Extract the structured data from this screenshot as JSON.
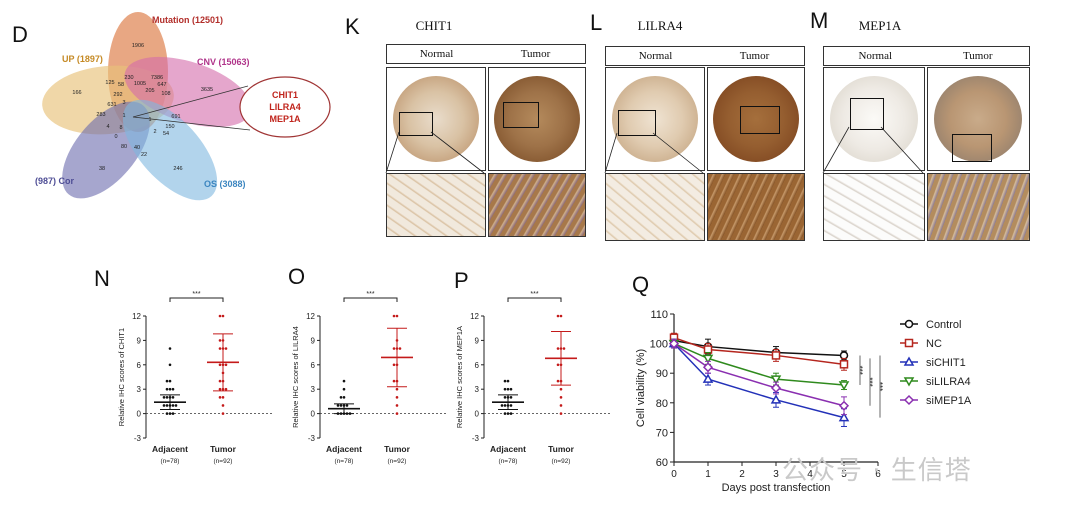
{
  "panels": {
    "D": "D",
    "K": "K",
    "L": "L",
    "M": "M",
    "N": "N",
    "O": "O",
    "P": "P",
    "Q": "Q"
  },
  "venn": {
    "sets": [
      {
        "label": "Mutation (12501)",
        "color": "#e0895a"
      },
      {
        "label": "UP (1897)",
        "color": "#e2b04f"
      },
      {
        "label": "CNV (15063)",
        "color": "#c8509a"
      },
      {
        "label": "(987) Cor",
        "color": "#6b6aad"
      },
      {
        "label": "OS (3088)",
        "color": "#4d9ad1"
      }
    ],
    "numbers": [
      {
        "v": "1906",
        "x": 138,
        "y": 47
      },
      {
        "v": "166",
        "x": 77,
        "y": 94
      },
      {
        "v": "3635",
        "x": 207,
        "y": 91
      },
      {
        "v": "38",
        "x": 102,
        "y": 170
      },
      {
        "v": "246",
        "x": 178,
        "y": 170
      },
      {
        "v": "125",
        "x": 110,
        "y": 84
      },
      {
        "v": "58",
        "x": 121,
        "y": 86
      },
      {
        "v": "230",
        "x": 129,
        "y": 79
      },
      {
        "v": "1005",
        "x": 140,
        "y": 85
      },
      {
        "v": "7386",
        "x": 157,
        "y": 79
      },
      {
        "v": "647",
        "x": 162,
        "y": 86
      },
      {
        "v": "205",
        "x": 150,
        "y": 92
      },
      {
        "v": "108",
        "x": 166,
        "y": 95
      },
      {
        "v": "292",
        "x": 118,
        "y": 96
      },
      {
        "v": "631",
        "x": 112,
        "y": 106
      },
      {
        "v": "3",
        "x": 124,
        "y": 104
      },
      {
        "v": "283",
        "x": 101,
        "y": 116
      },
      {
        "v": "1",
        "x": 124,
        "y": 117
      },
      {
        "v": "691",
        "x": 176,
        "y": 118
      },
      {
        "v": "4",
        "x": 108,
        "y": 128
      },
      {
        "v": "8",
        "x": 121,
        "y": 129
      },
      {
        "v": "150",
        "x": 170,
        "y": 128
      },
      {
        "v": "0",
        "x": 116,
        "y": 138
      },
      {
        "v": "2",
        "x": 155,
        "y": 133
      },
      {
        "v": "54",
        "x": 166,
        "y": 135
      },
      {
        "v": "80",
        "x": 124,
        "y": 148
      },
      {
        "v": "40",
        "x": 137,
        "y": 149
      },
      {
        "v": "22",
        "x": 144,
        "y": 156
      },
      {
        "v": "1",
        "x": 150,
        "y": 121
      }
    ],
    "callout": [
      "CHIT1",
      "LILRA4",
      "MEP1A"
    ]
  },
  "ihc": [
    {
      "panel": "K",
      "gene": "CHIT1",
      "normal": "Normal",
      "tumor": "Tumor"
    },
    {
      "panel": "L",
      "gene": "LILRA4",
      "normal": "Normal",
      "tumor": "Tumor"
    },
    {
      "panel": "M",
      "gene": "MEP1A",
      "normal": "Normal",
      "tumor": "Tumor"
    }
  ],
  "scatter": [
    {
      "panel": "N",
      "ylabel": "Relative IHC scores of CHIT1",
      "groups": [
        "Adjacent",
        "Tumor"
      ],
      "n": [
        "(n=78)",
        "(n=92)"
      ],
      "mean": [
        1.4,
        6.3
      ],
      "sd": [
        0.9,
        3.5
      ],
      "sig": "***"
    },
    {
      "panel": "O",
      "ylabel": "Relative IHC scores of LILRA4",
      "groups": [
        "Adjacent",
        "Tumor"
      ],
      "n": [
        "(n=78)",
        "(n=92)"
      ],
      "mean": [
        0.6,
        6.9
      ],
      "sd": [
        0.6,
        3.6
      ],
      "sig": "***"
    },
    {
      "panel": "P",
      "ylabel": "Relative IHC scores of MEP1A",
      "groups": [
        "Adjacent",
        "Tumor"
      ],
      "n": [
        "(n=78)",
        "(n=92)"
      ],
      "mean": [
        1.4,
        6.8
      ],
      "sd": [
        0.9,
        3.3
      ],
      "sig": "***"
    }
  ],
  "chart_data": [
    {
      "type": "scatter",
      "panel": "N",
      "ylabel": "Relative IHC scores of CHIT1",
      "categories": [
        "Adjacent",
        "Tumor"
      ],
      "ylim": [
        -3,
        12
      ],
      "yticks": [
        -3,
        0,
        3,
        6,
        9,
        12
      ],
      "series": [
        {
          "name": "Adjacent",
          "values": [
            0,
            0,
            0,
            1,
            1,
            1,
            1,
            1,
            2,
            2,
            2,
            2,
            3,
            3,
            3,
            4,
            4,
            6,
            8
          ]
        },
        {
          "name": "Tumor",
          "values": [
            0,
            1,
            2,
            2,
            3,
            3,
            3,
            4,
            4,
            5,
            6,
            6,
            6,
            8,
            8,
            8,
            9,
            9,
            12,
            12
          ]
        }
      ]
    },
    {
      "type": "scatter",
      "panel": "O",
      "ylabel": "Relative IHC scores of LILRA4",
      "categories": [
        "Adjacent",
        "Tumor"
      ],
      "ylim": [
        -3,
        12
      ],
      "yticks": [
        -3,
        0,
        3,
        6,
        9,
        12
      ],
      "series": [
        {
          "name": "Adjacent",
          "values": [
            0,
            0,
            0,
            0,
            0,
            1,
            1,
            1,
            1,
            2,
            2,
            3,
            4
          ]
        },
        {
          "name": "Tumor",
          "values": [
            0,
            1,
            2,
            3,
            4,
            4,
            6,
            6,
            8,
            8,
            8,
            9,
            12,
            12
          ]
        }
      ]
    },
    {
      "type": "scatter",
      "panel": "P",
      "ylabel": "Relative IHC scores of MEP1A",
      "categories": [
        "Adjacent",
        "Tumor"
      ],
      "ylim": [
        -3,
        12
      ],
      "yticks": [
        -3,
        0,
        3,
        6,
        9,
        12
      ],
      "series": [
        {
          "name": "Adjacent",
          "values": [
            0,
            0,
            0,
            1,
            1,
            1,
            1,
            2,
            2,
            2,
            3,
            3,
            3,
            4,
            4
          ]
        },
        {
          "name": "Tumor",
          "values": [
            0,
            1,
            2,
            3,
            4,
            4,
            6,
            6,
            8,
            8,
            8,
            12,
            12
          ]
        }
      ]
    },
    {
      "type": "line",
      "panel": "Q",
      "xlabel": "Days post transfection",
      "ylabel": "Cell viability (%)",
      "x": [
        0,
        1,
        3,
        5
      ],
      "xlim": [
        0,
        6
      ],
      "ylim": [
        60,
        110
      ],
      "xticks": [
        0,
        1,
        2,
        3,
        4,
        5,
        6
      ],
      "yticks": [
        60,
        70,
        80,
        90,
        100,
        110
      ],
      "sig": [
        "***",
        "***",
        "***"
      ],
      "series": [
        {
          "name": "Control",
          "values": [
            101,
            99,
            97,
            96
          ],
          "err": [
            1.5,
            2.5,
            2,
            1.5
          ],
          "color": "#111111",
          "marker": "circle"
        },
        {
          "name": "NC",
          "values": [
            102,
            98,
            96,
            93
          ],
          "err": [
            1.5,
            2,
            2,
            2
          ],
          "color": "#b5261e",
          "marker": "square"
        },
        {
          "name": "siCHIT1",
          "values": [
            100,
            88,
            81,
            75
          ],
          "err": [
            1.5,
            2,
            2.5,
            3
          ],
          "color": "#2331b8",
          "marker": "triangle-up"
        },
        {
          "name": "siLILRA4",
          "values": [
            100,
            95,
            88,
            86
          ],
          "err": [
            1.5,
            2,
            2,
            1.5
          ],
          "color": "#2f8a1d",
          "marker": "triangle-down"
        },
        {
          "name": "siMEP1A",
          "values": [
            100,
            92,
            85,
            79
          ],
          "err": [
            1.5,
            2,
            2,
            3
          ],
          "color": "#8a2fb0",
          "marker": "diamond"
        }
      ]
    }
  ],
  "watermark": "公众号 · 生信塔"
}
